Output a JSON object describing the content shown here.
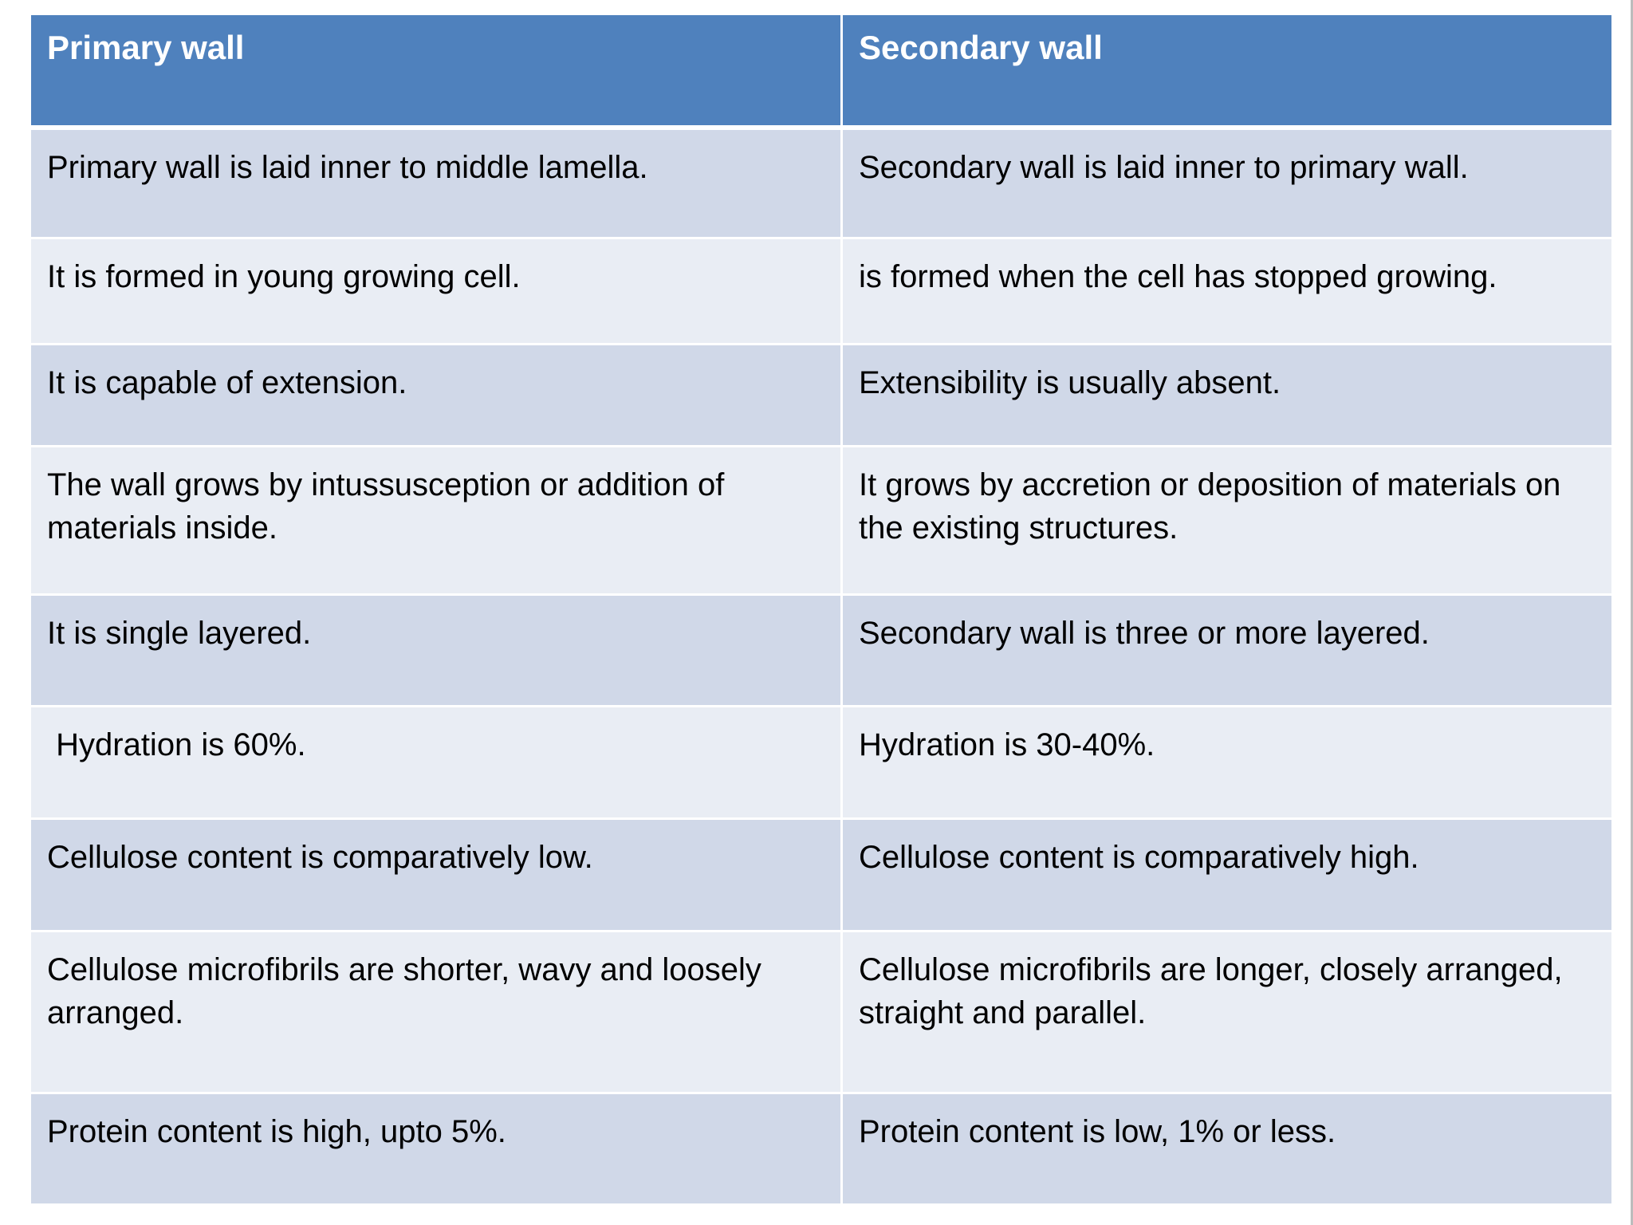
{
  "table": {
    "headers": [
      "Primary wall",
      "Secondary wall"
    ],
    "rows": [
      [
        "Primary wall is laid inner to middle lamella.",
        "Secondary wall is laid inner to primary wall."
      ],
      [
        "It is formed in young growing cell.",
        "is formed when the cell has stopped growing."
      ],
      [
        "It is capable of extension.",
        "Extensibility is usually absent."
      ],
      [
        "The wall grows by intussusception or addition of materials inside.",
        "It grows by accretion or deposition of materials on the existing structures."
      ],
      [
        "It is single layered.",
        "Secondary wall is three or more layered."
      ],
      [
        " Hydration is 60%.",
        "Hydration is 30-40%."
      ],
      [
        "Cellulose content is comparatively low.",
        "Cellulose content is comparatively high."
      ],
      [
        "Cellulose microfibrils are shorter, wavy and loosely arranged.",
        "Cellulose microfibrils are longer, closely arranged, straight and parallel."
      ],
      [
        "Protein content is high, upto 5%.",
        "Protein content is low, 1% or less."
      ]
    ]
  },
  "colors": {
    "header_bg": "#4f81bd",
    "row_odd_bg": "#d0d8e8",
    "row_even_bg": "#e9edf4"
  }
}
